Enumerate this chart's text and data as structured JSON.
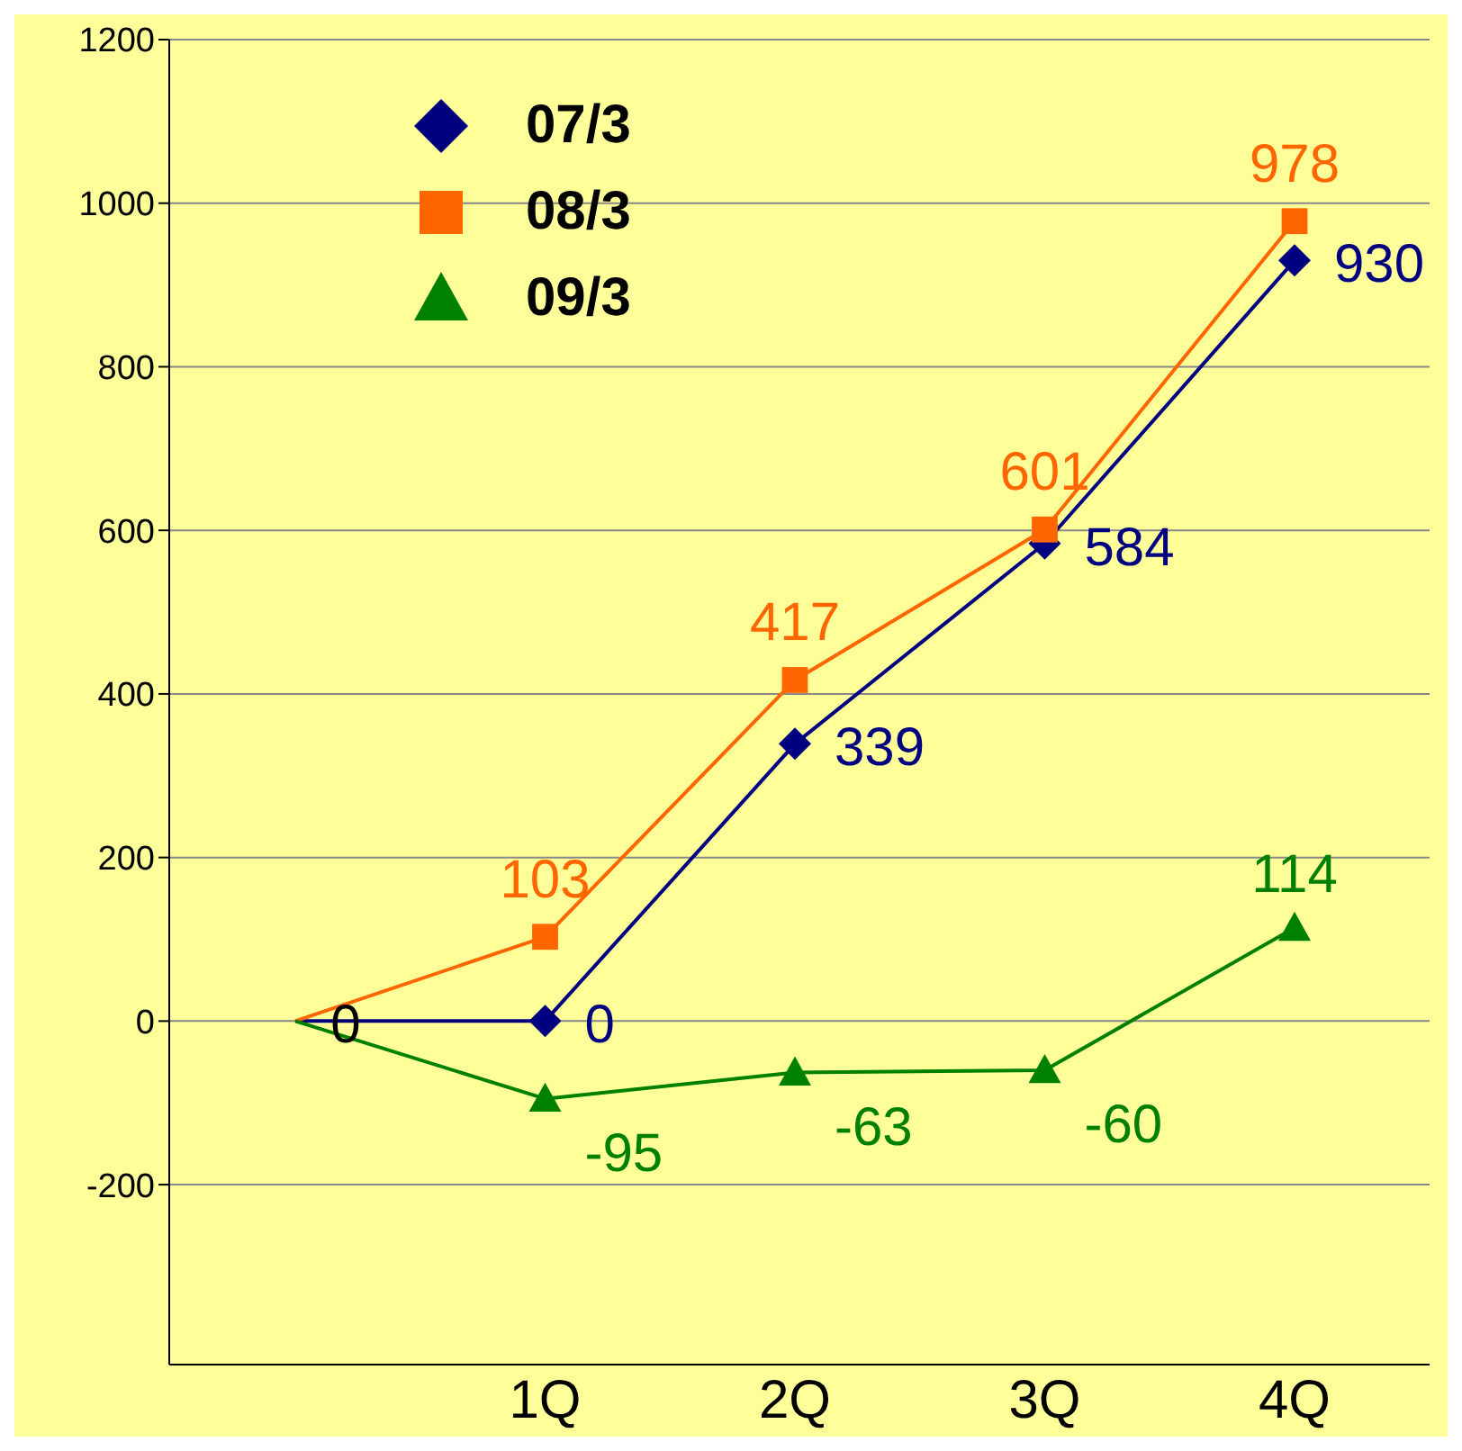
{
  "chart_data": {
    "type": "line",
    "categories": [
      null,
      "1Q",
      "2Q",
      "3Q",
      "4Q"
    ],
    "series": [
      {
        "name": "07/3",
        "color": "#000080",
        "marker": "diamond",
        "values": [
          0,
          0,
          339,
          584,
          930
        ],
        "value_labels": [
          "0",
          "0",
          "339",
          "584",
          "930"
        ]
      },
      {
        "name": "08/3",
        "color": "#ff6600",
        "marker": "square",
        "values": [
          0,
          103,
          417,
          601,
          978
        ],
        "value_labels": [
          null,
          "103",
          "417",
          "601",
          "978"
        ]
      },
      {
        "name": "09/3",
        "color": "#008000",
        "marker": "triangle",
        "values": [
          0,
          -95,
          -63,
          -60,
          114
        ],
        "value_labels": [
          null,
          "-95",
          "-63",
          "-60",
          "114"
        ]
      }
    ],
    "ylim": [
      -420,
      1200
    ],
    "yticks": [
      -200,
      0,
      200,
      400,
      600,
      800,
      1000,
      1200
    ],
    "grid": "y",
    "legend": "top left",
    "line_style": "solid"
  }
}
